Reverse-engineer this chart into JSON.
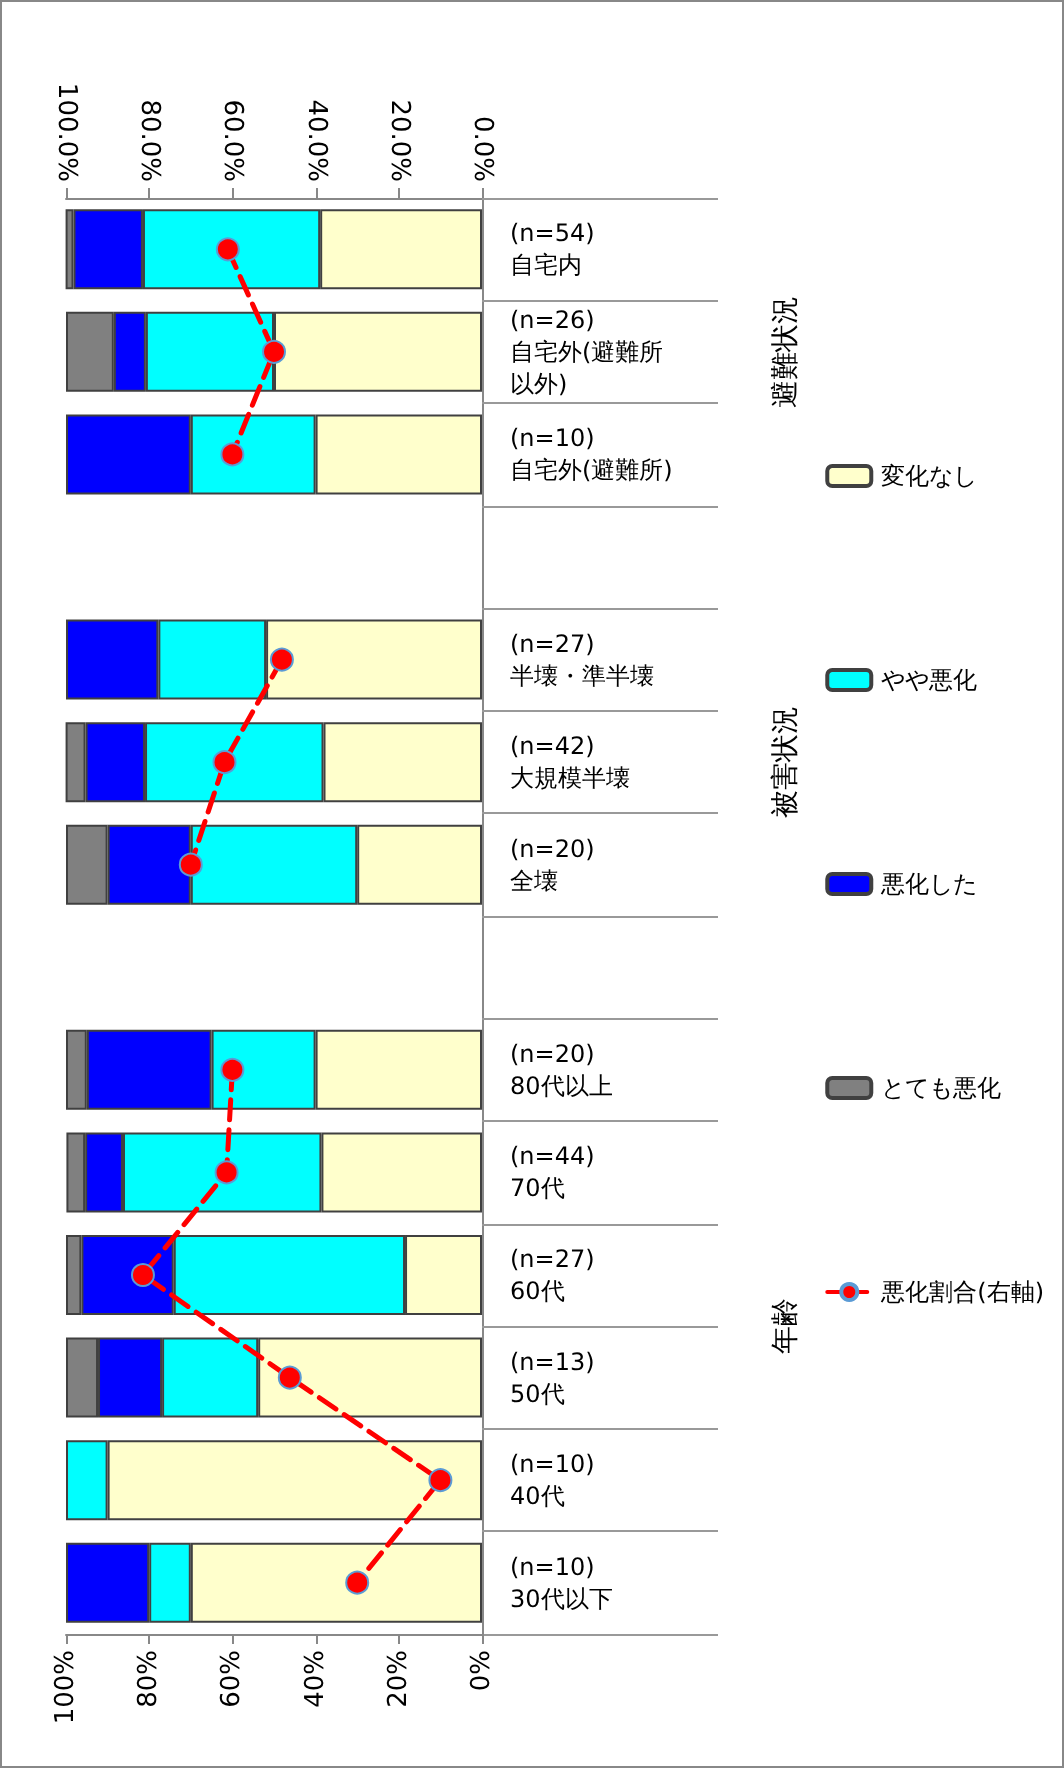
{
  "chart_data": {
    "type": "bar",
    "stacked": true,
    "orientation": "horizontal",
    "categories": [
      "(n=54)\n自宅内",
      "(n=26)\n自宅外(避難所以外)",
      "(n=10)\n自宅外(避難所)",
      null,
      "(n=27)\n半壊・準半壊",
      "(n=42)\n大規模半壊",
      "(n=20)\n全壊",
      null,
      "(n=20)\n80代以上",
      "(n=44)\n70代",
      "(n=27)\n60代",
      "(n=13)\n50代",
      "(n=10)\n40代",
      "(n=10)\n30代以下"
    ],
    "series": [
      {
        "name": "変化なし",
        "color": "#ffffcc",
        "values": [
          38.9,
          50,
          40,
          null,
          51.9,
          38.1,
          30,
          null,
          40,
          38.6,
          18.5,
          53.8,
          90,
          70
        ]
      },
      {
        "name": "やや悪化",
        "color": "#00ffff",
        "values": [
          42.6,
          30.8,
          30,
          null,
          25.9,
          42.9,
          40,
          null,
          25,
          47.7,
          55.6,
          23.1,
          10,
          10
        ]
      },
      {
        "name": "悪化した",
        "color": "#0000ff",
        "values": [
          16.7,
          7.7,
          30,
          null,
          22.2,
          14.3,
          20,
          null,
          30,
          9.1,
          22.2,
          15.4,
          0,
          20
        ]
      },
      {
        "name": "とても悪化",
        "color": "#808080",
        "values": [
          1.9,
          11.5,
          0,
          null,
          0,
          4.8,
          10,
          null,
          5,
          4.5,
          3.7,
          7.7,
          0,
          0
        ]
      },
      {
        "name": "悪化割合(右軸)",
        "type": "line",
        "axis": "x2",
        "color": "#ff0000",
        "marker": "circle",
        "line_style": "dashed",
        "values": [
          61.1,
          50,
          60,
          null,
          48.1,
          61.9,
          70,
          null,
          60,
          61.4,
          81.5,
          46.2,
          10,
          30
        ]
      }
    ],
    "xlim": [
      100,
      0
    ],
    "xticks": [
      {
        "value": 100,
        "label": "100%"
      },
      {
        "value": 80,
        "label": "80%"
      },
      {
        "value": 60,
        "label": "60%"
      },
      {
        "value": 40,
        "label": "40%"
      },
      {
        "value": 20,
        "label": "20%"
      },
      {
        "value": 0,
        "label": "0%"
      }
    ],
    "x2lim": [
      100,
      0
    ],
    "x2ticks": [
      {
        "value": 100,
        "label": "100.0%"
      },
      {
        "value": 80,
        "label": "80.0%"
      },
      {
        "value": 60,
        "label": "60.0%"
      },
      {
        "value": 40,
        "label": "40.0%"
      },
      {
        "value": 20,
        "label": "20.0%"
      },
      {
        "value": 0,
        "label": "0.0%"
      }
    ],
    "annotations": [
      "避難状況",
      "被害状況",
      "年齢"
    ],
    "legend": "right",
    "grid": false
  }
}
